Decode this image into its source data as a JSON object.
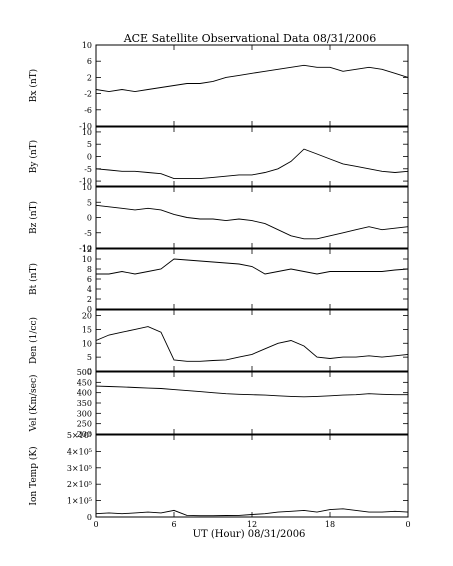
{
  "chart_data": {
    "type": "line",
    "title": "ACE Satellite Observational Data   08/31/2006",
    "xlabel": "UT (Hour)  08/31/2006",
    "xlim": [
      0,
      24
    ],
    "x_ticks": [
      "0",
      "6",
      "12",
      "18",
      "0"
    ],
    "x_tick_values": [
      0,
      6,
      12,
      18,
      24
    ],
    "grid": false,
    "panels": [
      {
        "ylabel": "Bx (nT)",
        "ylim": [
          -10,
          10
        ],
        "y_ticks": [
          -10,
          -6,
          -2,
          2,
          6,
          10
        ],
        "y_tick_labels": [
          "-10",
          "-6",
          "-2",
          "2",
          "6",
          "10"
        ],
        "series": [
          {
            "x": [
              0,
              1,
              2,
              3,
              4,
              5,
              6,
              7,
              8,
              9,
              10,
              11,
              12,
              13,
              14,
              15,
              16,
              17,
              18,
              19,
              20,
              21,
              22,
              23,
              24
            ],
            "values": [
              -1,
              -1.5,
              -1,
              -1.5,
              -1,
              -0.5,
              0,
              0.5,
              0.5,
              1,
              2,
              2.5,
              3,
              3.5,
              4,
              4.5,
              5,
              4.5,
              4.5,
              3.5,
              4,
              4.5,
              4,
              3,
              2
            ]
          }
        ]
      },
      {
        "ylabel": "By (nT)",
        "ylim": [
          -12,
          12
        ],
        "y_ticks": [
          -10,
          -5,
          0,
          5,
          10
        ],
        "y_tick_labels": [
          "-10",
          "-5",
          "0",
          "5",
          "10"
        ],
        "series": [
          {
            "x": [
              0,
              1,
              2,
              3,
              4,
              5,
              6,
              7,
              8,
              9,
              10,
              11,
              12,
              13,
              14,
              15,
              16,
              17,
              18,
              19,
              20,
              21,
              22,
              23,
              24
            ],
            "values": [
              -5,
              -5.5,
              -6,
              -6,
              -6.5,
              -7,
              -9,
              -9,
              -9,
              -8.5,
              -8,
              -7.5,
              -7.5,
              -6.5,
              -5,
              -2,
              3,
              1,
              -1,
              -3,
              -4,
              -5,
              -6,
              -6.5,
              -6
            ]
          }
        ]
      },
      {
        "ylabel": "Bz (nT)",
        "ylim": [
          -10,
          10
        ],
        "y_ticks": [
          -10,
          -5,
          0,
          5,
          10
        ],
        "y_tick_labels": [
          "-10",
          "-5",
          "0",
          "5",
          "10"
        ],
        "series": [
          {
            "x": [
              0,
              1,
              2,
              3,
              4,
              5,
              6,
              7,
              8,
              9,
              10,
              11,
              12,
              13,
              14,
              15,
              16,
              17,
              18,
              19,
              20,
              21,
              22,
              23,
              24
            ],
            "values": [
              4,
              3.5,
              3,
              2.5,
              3,
              2.5,
              1,
              0,
              -0.5,
              -0.5,
              -1,
              -0.5,
              -1,
              -2,
              -4,
              -6,
              -7,
              -7,
              -6,
              -5,
              -4,
              -3,
              -4,
              -3.5,
              -3
            ]
          }
        ]
      },
      {
        "ylabel": "Bt (nT)",
        "ylim": [
          0,
          12
        ],
        "y_ticks": [
          0,
          2,
          4,
          6,
          8,
          10,
          12
        ],
        "y_tick_labels": [
          "0",
          "2",
          "4",
          "6",
          "8",
          "10",
          "12"
        ],
        "series": [
          {
            "x": [
              0,
              1,
              2,
              3,
              4,
              5,
              6,
              7,
              8,
              9,
              10,
              11,
              12,
              13,
              14,
              15,
              16,
              17,
              18,
              19,
              20,
              21,
              22,
              23,
              24
            ],
            "values": [
              7,
              7,
              7.5,
              7,
              7.5,
              8,
              10,
              9.8,
              9.6,
              9.4,
              9.2,
              9,
              8.5,
              7,
              7.5,
              8,
              7.5,
              7,
              7.5,
              7.5,
              7.5,
              7.5,
              7.5,
              7.8,
              8
            ]
          }
        ]
      },
      {
        "ylabel": "Den (1/cc)",
        "ylim": [
          0,
          22
        ],
        "y_ticks": [
          0,
          5,
          10,
          15,
          20
        ],
        "y_tick_labels": [
          "0",
          "5",
          "10",
          "15",
          "20"
        ],
        "series": [
          {
            "x": [
              0,
              1,
              2,
              3,
              4,
              5,
              6,
              7,
              8,
              9,
              10,
              11,
              12,
              13,
              14,
              15,
              16,
              17,
              18,
              19,
              20,
              21,
              22,
              23,
              24
            ],
            "values": [
              11,
              13,
              14,
              15,
              16,
              14,
              4,
              3.5,
              3.5,
              3.8,
              4,
              5,
              6,
              8,
              10,
              11,
              9,
              5,
              4.5,
              5,
              5,
              5.5,
              5,
              5.5,
              6
            ]
          }
        ]
      },
      {
        "ylabel": "Vel (Km/sec)",
        "ylim": [
          200,
          500
        ],
        "y_ticks": [
          200,
          250,
          300,
          350,
          400,
          450,
          500
        ],
        "y_tick_labels": [
          "200",
          "250",
          "300",
          "350",
          "400",
          "450",
          "500"
        ],
        "series": [
          {
            "x": [
              0,
              1,
              2,
              3,
              4,
              5,
              6,
              7,
              8,
              9,
              10,
              11,
              12,
              13,
              14,
              15,
              16,
              17,
              18,
              19,
              20,
              21,
              22,
              23,
              24
            ],
            "values": [
              432,
              430,
              428,
              425,
              422,
              420,
              415,
              410,
              405,
              400,
              395,
              392,
              390,
              388,
              385,
              382,
              380,
              382,
              385,
              388,
              390,
              395,
              392,
              390,
              390
            ]
          }
        ]
      },
      {
        "ylabel": "Ion Temp (K)",
        "ylim": [
          0,
          500000
        ],
        "y_ticks": [
          0,
          100000,
          200000,
          300000,
          400000,
          500000
        ],
        "y_tick_labels": [
          "0",
          "1×10⁵",
          "2×10⁵",
          "3×10⁵",
          "4×10⁵",
          "5×10⁵"
        ],
        "series": [
          {
            "x": [
              0,
              1,
              2,
              3,
              4,
              5,
              6,
              7,
              8,
              9,
              10,
              11,
              12,
              13,
              14,
              15,
              16,
              17,
              18,
              19,
              20,
              21,
              22,
              23,
              24
            ],
            "values": [
              20000,
              25000,
              20000,
              25000,
              30000,
              25000,
              40000,
              10000,
              8000,
              8000,
              9000,
              10000,
              15000,
              20000,
              30000,
              35000,
              40000,
              30000,
              45000,
              50000,
              40000,
              30000,
              30000,
              35000,
              30000
            ]
          }
        ]
      }
    ]
  }
}
